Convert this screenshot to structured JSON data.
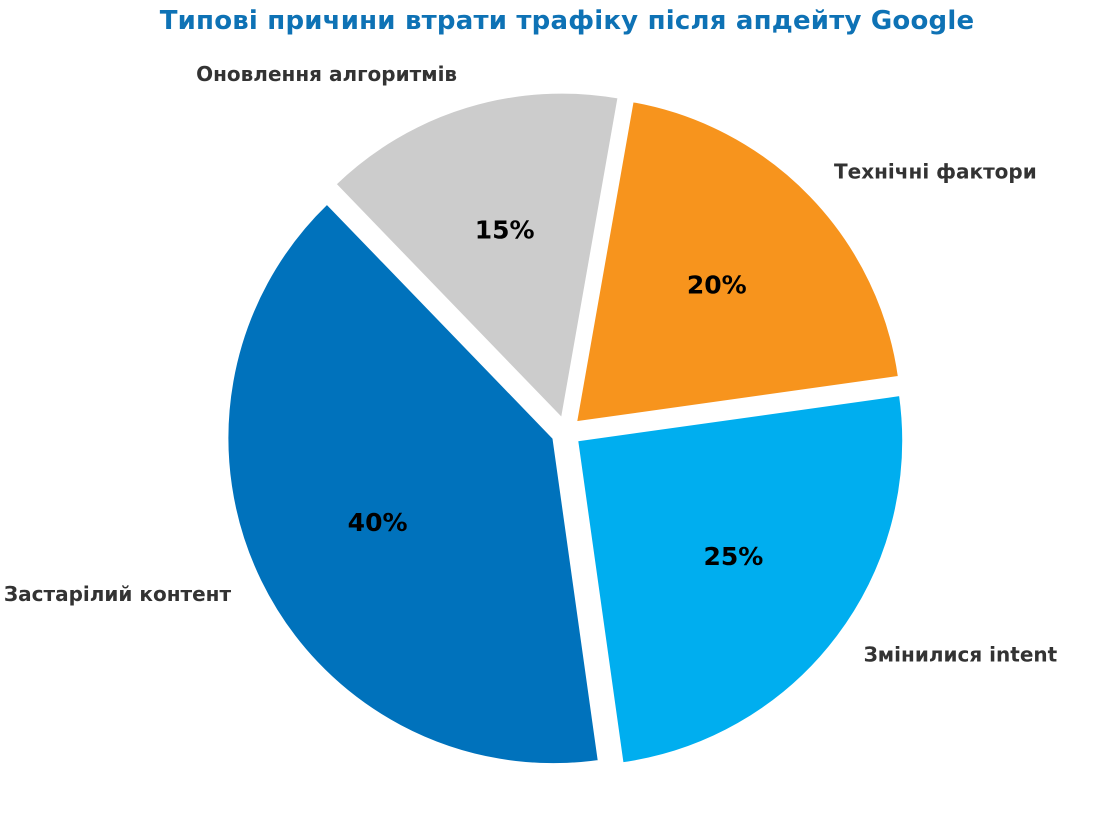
{
  "chart_data": {
    "type": "pie",
    "title": "Типові причини втрати трафіку після апдейту Google",
    "labels": [
      "Застарілий контент",
      "Змінилися intent",
      "Технічні фактори",
      "Оновлення алгоритмів"
    ],
    "values": [
      40,
      25,
      20,
      15
    ],
    "value_labels": [
      "40%",
      "25%",
      "20%",
      "15%"
    ],
    "colors": [
      "#0072BC",
      "#00AEEF",
      "#F7941D",
      "#CCCCCC"
    ],
    "exploded": true,
    "legend": "none"
  }
}
